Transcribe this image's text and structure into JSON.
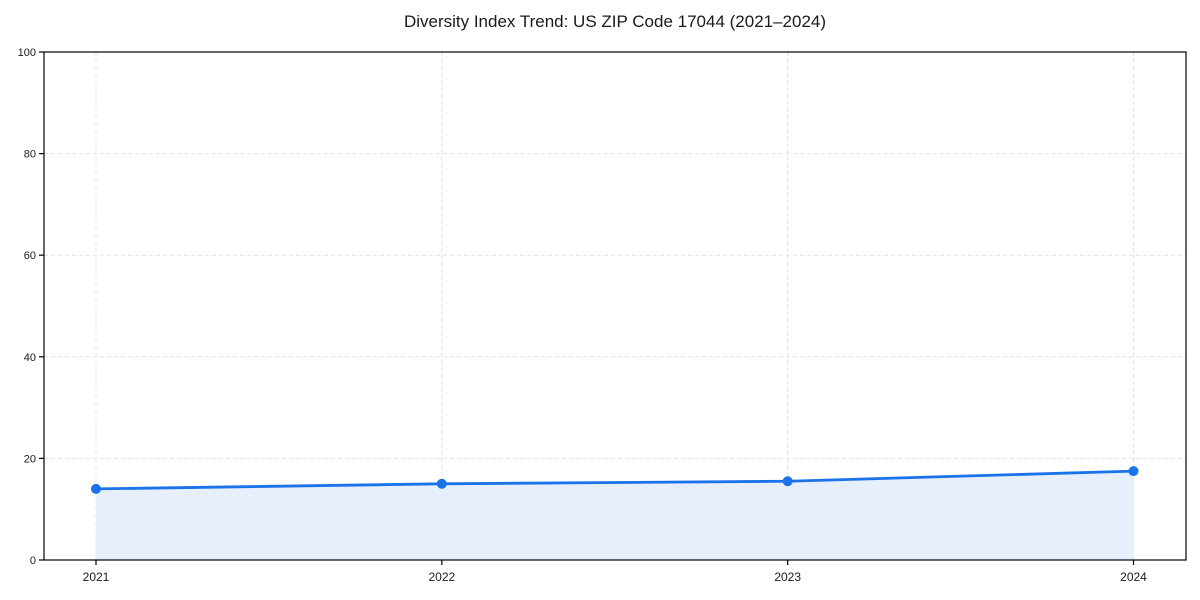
{
  "title": "Diversity Index Trend: US ZIP Code 17044 (2021–2024)",
  "chart_data": {
    "type": "area",
    "categories": [
      "2021",
      "2022",
      "2023",
      "2024"
    ],
    "values": [
      14,
      15,
      15.5,
      17.5
    ],
    "series": [
      {
        "name": "Diversity Index",
        "values": [
          14,
          15,
          15.5,
          17.5
        ]
      }
    ],
    "title": "Diversity Index Trend: US ZIP Code 17044 (2021–2024)",
    "xlabel": "",
    "ylabel": "",
    "ylim": [
      0,
      100
    ],
    "yticks": [
      0,
      20,
      40,
      60,
      80,
      100
    ],
    "grid": true,
    "grid_style": "dashed",
    "legend": "none",
    "marker": "circle",
    "colors": {
      "line": "#1a73e8",
      "marker": "#1a73e8",
      "fill": "#e7effc",
      "grid": "#e2e2e2",
      "spine": "#000000",
      "text": "#1a1a1a",
      "background": "#ffffff"
    }
  }
}
